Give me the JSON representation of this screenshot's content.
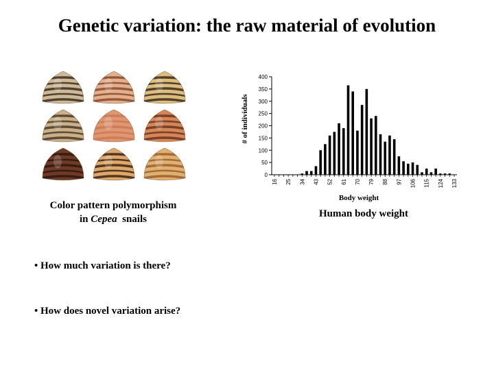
{
  "title": "Genetic variation: the raw material of evolution",
  "left_caption": {
    "line1": "Color pattern polymorphism",
    "line2_prefix": "in ",
    "line2_genus": "Cepea",
    "line2_suffix": "  snails"
  },
  "right_caption": "Human body weight",
  "bullets": [
    "• How much variation is there?",
    "• How does novel variation arise?"
  ],
  "colors": {
    "shell_dark": "#3b2a22",
    "shell_cream": "#dcc8a0",
    "shell_pink": "#e0a07a",
    "shell_orange": "#d88a50",
    "shell_yellow": "#e4b86a",
    "bar": "#000000"
  },
  "snails": [
    {
      "base": "#cdb996",
      "band": "#3a2c22"
    },
    {
      "base": "#e3b08c",
      "band": "#8a4a30"
    },
    {
      "base": "#dcbd7e",
      "band": "#3a2a1c"
    },
    {
      "base": "#c9b089",
      "band": "#4a3a2a"
    },
    {
      "base": "#e09670",
      "band": "#c77a55"
    },
    {
      "base": "#d48656",
      "band": "#6a3420"
    },
    {
      "base": "#6e3a26",
      "band": "#2e1810"
    },
    {
      "base": "#dfa86a",
      "band": "#3a2414"
    },
    {
      "base": "#e0b070",
      "band": "#9a6030"
    }
  ],
  "chart_data": {
    "type": "bar",
    "xlabel": "Body weight",
    "ylabel": "# of individuals",
    "ylim": [
      0,
      400
    ],
    "yticks": [
      0,
      50,
      100,
      150,
      200,
      250,
      300,
      350,
      400
    ],
    "xticks": [
      "16",
      "25",
      "34",
      "43",
      "52",
      "61",
      "70",
      "79",
      "88",
      "97",
      "106",
      "115",
      "124",
      "133"
    ],
    "x": [
      16,
      19,
      22,
      25,
      28,
      31,
      34,
      37,
      40,
      43,
      46,
      49,
      52,
      55,
      58,
      61,
      64,
      67,
      70,
      73,
      76,
      79,
      82,
      85,
      88,
      91,
      94,
      97,
      100,
      103,
      106,
      109,
      112,
      115,
      118,
      121,
      124,
      127,
      130,
      133
    ],
    "values": [
      0,
      0,
      0,
      0,
      0,
      0,
      5,
      15,
      15,
      35,
      100,
      125,
      160,
      175,
      210,
      190,
      365,
      340,
      180,
      285,
      350,
      230,
      240,
      165,
      135,
      160,
      145,
      75,
      55,
      45,
      50,
      40,
      10,
      25,
      10,
      25,
      5,
      5,
      5,
      0
    ]
  }
}
